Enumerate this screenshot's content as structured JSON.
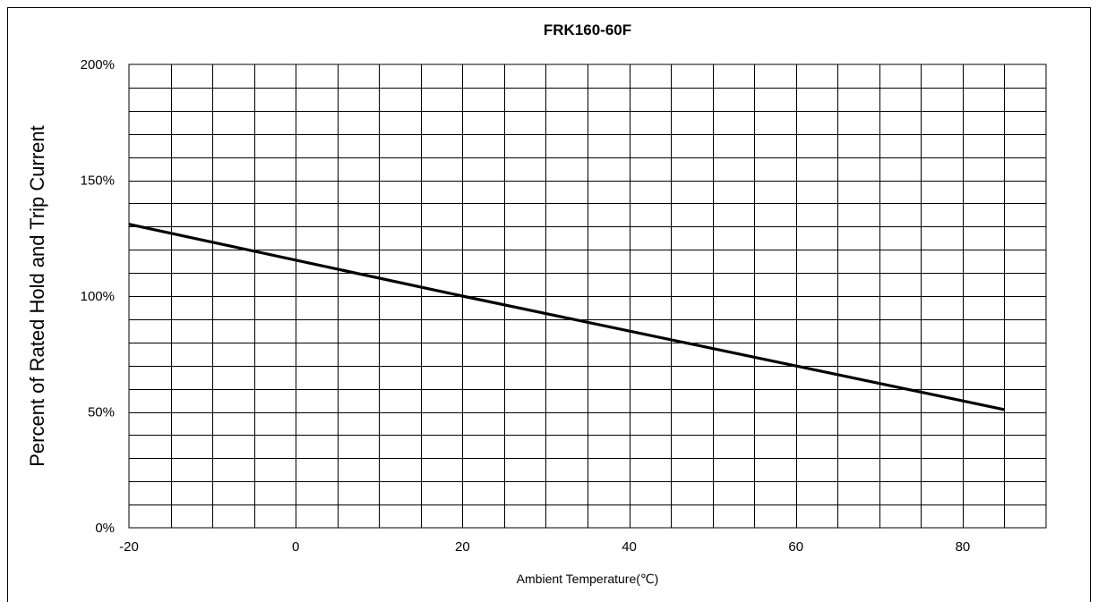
{
  "chart_data": {
    "type": "line",
    "title": "FRK160-60F",
    "xlabel": "Ambient Temperature(℃)",
    "ylabel": "Percent of Rated Hold and Trip Current",
    "xlim": [
      -20,
      90
    ],
    "ylim": [
      0,
      200
    ],
    "x_ticks": [
      -20,
      0,
      20,
      40,
      60,
      80
    ],
    "x_tick_labels": [
      "-20",
      "0",
      "20",
      "40",
      "60",
      "80"
    ],
    "y_ticks": [
      0,
      50,
      100,
      150,
      200
    ],
    "y_tick_labels": [
      "0%",
      "50%",
      "100%",
      "150%",
      "200%"
    ],
    "grid": true,
    "x_minor_step": 5,
    "y_minor_step": 10,
    "series": [
      {
        "color": "#000000",
        "x": [
          -20,
          20,
          85
        ],
        "y": [
          131,
          100,
          51
        ]
      }
    ]
  }
}
